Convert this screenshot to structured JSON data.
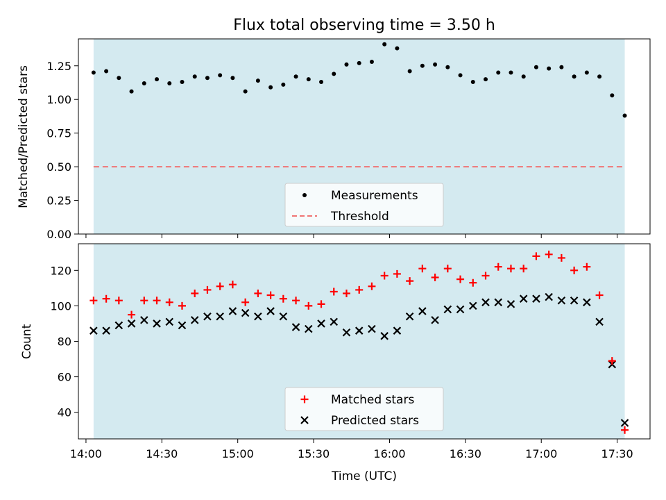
{
  "chart_data": [
    {
      "type": "scatter",
      "title": "Flux total observing time = 3.50 h",
      "ylabel": "Matched/Predicted stars",
      "xlabel": "",
      "xlim": [
        "13:57",
        "17:43"
      ],
      "ylim": [
        0,
        1.45
      ],
      "yticks": [
        "0.00",
        "0.25",
        "0.50",
        "0.75",
        "1.00",
        "1.25"
      ],
      "observing_window": [
        "14:03",
        "17:33"
      ],
      "window_color": "#d4eaf0",
      "legend_position": "lower center",
      "series": [
        {
          "name": "Measurements",
          "marker": "dot",
          "color": "#000000",
          "x": [
            "14:03",
            "14:08",
            "14:13",
            "14:18",
            "14:23",
            "14:28",
            "14:33",
            "14:38",
            "14:43",
            "14:48",
            "14:53",
            "14:58",
            "15:03",
            "15:08",
            "15:13",
            "15:18",
            "15:23",
            "15:28",
            "15:33",
            "15:38",
            "15:43",
            "15:48",
            "15:53",
            "15:58",
            "16:03",
            "16:08",
            "16:13",
            "16:18",
            "16:23",
            "16:28",
            "16:33",
            "16:38",
            "16:43",
            "16:48",
            "16:53",
            "16:58",
            "17:03",
            "17:08",
            "17:13",
            "17:18",
            "17:23",
            "17:28",
            "17:33"
          ],
          "y": [
            1.2,
            1.21,
            1.16,
            1.06,
            1.12,
            1.15,
            1.12,
            1.13,
            1.17,
            1.16,
            1.18,
            1.16,
            1.06,
            1.14,
            1.09,
            1.11,
            1.17,
            1.15,
            1.13,
            1.19,
            1.26,
            1.27,
            1.28,
            1.41,
            1.38,
            1.21,
            1.25,
            1.26,
            1.24,
            1.18,
            1.13,
            1.15,
            1.2,
            1.2,
            1.17,
            1.24,
            1.23,
            1.24,
            1.17,
            1.2,
            1.17,
            1.03,
            0.88
          ]
        },
        {
          "name": "Threshold",
          "type": "line",
          "style": "dashed",
          "color": "#f07474",
          "x": [
            "14:03",
            "17:33"
          ],
          "y": [
            0.5,
            0.5
          ]
        }
      ]
    },
    {
      "type": "scatter",
      "title": "",
      "xlabel": "Time (UTC)",
      "ylabel": "Count",
      "xlim": [
        "13:57",
        "17:43"
      ],
      "ylim": [
        25,
        135
      ],
      "xticks": [
        "14:00",
        "14:30",
        "15:00",
        "15:30",
        "16:00",
        "16:30",
        "17:00",
        "17:30"
      ],
      "yticks": [
        "40",
        "60",
        "80",
        "100",
        "120"
      ],
      "observing_window": [
        "14:03",
        "17:33"
      ],
      "window_color": "#d4eaf0",
      "legend_position": "lower center",
      "x": [
        "14:03",
        "14:08",
        "14:13",
        "14:18",
        "14:23",
        "14:28",
        "14:33",
        "14:38",
        "14:43",
        "14:48",
        "14:53",
        "14:58",
        "15:03",
        "15:08",
        "15:13",
        "15:18",
        "15:23",
        "15:28",
        "15:33",
        "15:38",
        "15:43",
        "15:48",
        "15:53",
        "15:58",
        "16:03",
        "16:08",
        "16:13",
        "16:18",
        "16:23",
        "16:28",
        "16:33",
        "16:38",
        "16:43",
        "16:48",
        "16:53",
        "16:58",
        "17:03",
        "17:08",
        "17:13",
        "17:18",
        "17:23",
        "17:28",
        "17:33"
      ],
      "series": [
        {
          "name": "Matched stars",
          "marker": "plus",
          "color": "#ff0000",
          "values": [
            103,
            104,
            103,
            95,
            103,
            103,
            102,
            100,
            107,
            109,
            111,
            112,
            102,
            107,
            106,
            104,
            103,
            100,
            101,
            108,
            107,
            109,
            111,
            117,
            118,
            114,
            121,
            116,
            121,
            115,
            113,
            117,
            122,
            121,
            121,
            128,
            129,
            127,
            120,
            122,
            106,
            69,
            30
          ]
        },
        {
          "name": "Predicted stars",
          "marker": "x",
          "color": "#000000",
          "values": [
            86,
            86,
            89,
            90,
            92,
            90,
            91,
            89,
            92,
            94,
            94,
            97,
            96,
            94,
            97,
            94,
            88,
            87,
            90,
            91,
            85,
            86,
            87,
            83,
            86,
            94,
            97,
            92,
            98,
            98,
            100,
            102,
            102,
            101,
            104,
            104,
            105,
            103,
            103,
            102,
            91,
            67,
            34
          ]
        }
      ]
    }
  ]
}
